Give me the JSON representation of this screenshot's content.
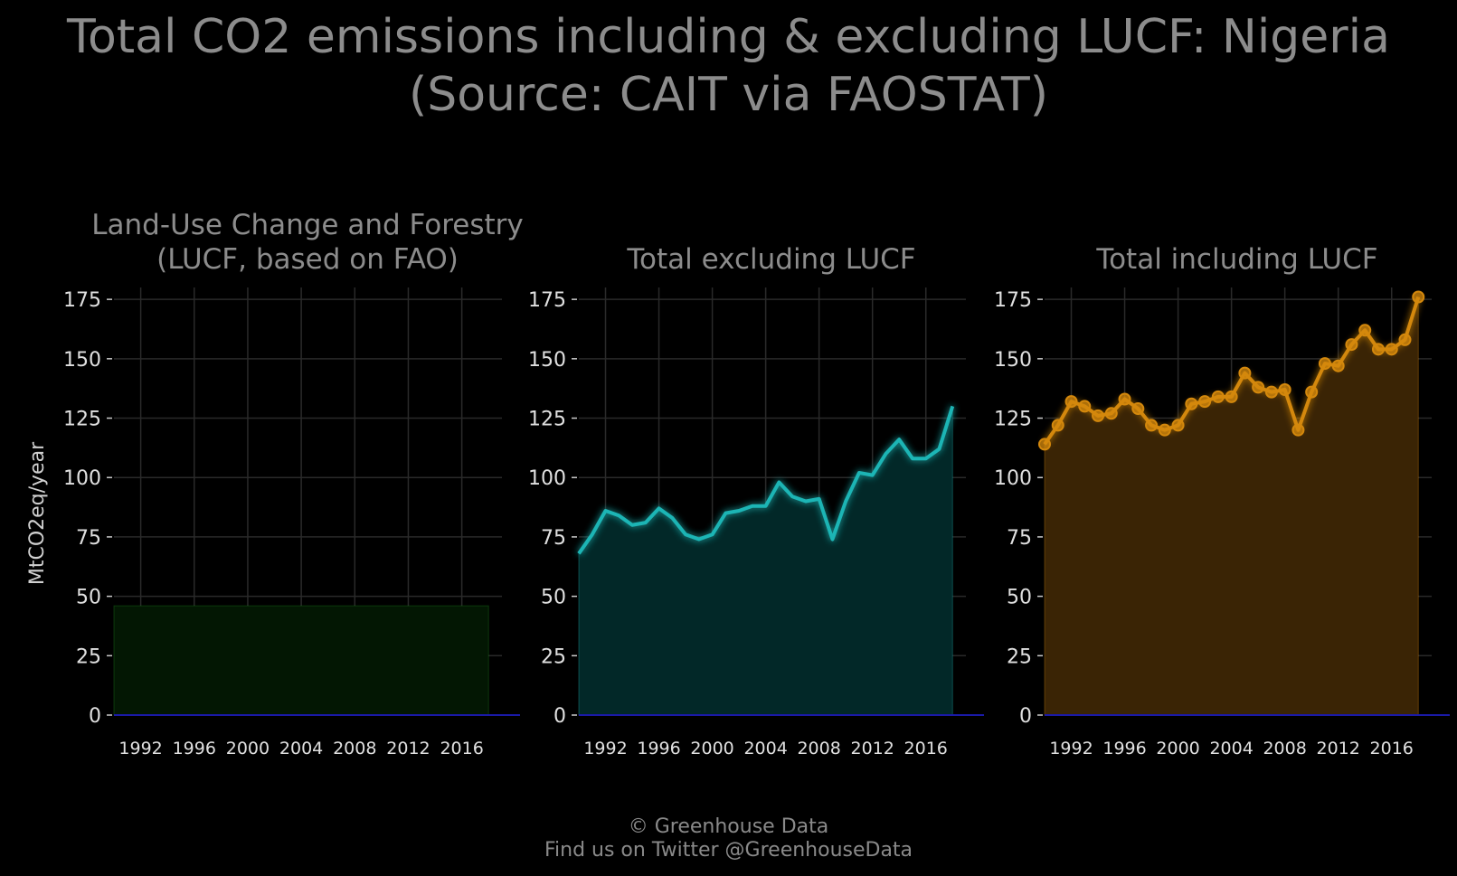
{
  "title_line1": "Total CO2 emissions including & excluding LUCF: Nigeria",
  "title_line2": "(Source: CAIT via FAOSTAT)",
  "ylabel": "MtCO2eq/year",
  "footer_line1": "© Greenhouse Data",
  "footer_line2": "Find us on Twitter @GreenhouseData",
  "colors": {
    "background": "#000000",
    "grid": "#2a2a2a",
    "lucf": "#1f8a1f",
    "lucf_fill": "#031703",
    "excl": "#1fb5b5",
    "excl_fill": "#022828",
    "incl": "#d4880c",
    "incl_fill": "#3a2405",
    "zero_line": "#1a1aa8"
  },
  "chart_data": [
    {
      "type": "area",
      "title_line1": "Land-Use Change and Forestry",
      "title_line2": "(LUCF, based on FAO)",
      "x": [
        1990,
        1991,
        1992,
        1993,
        1994,
        1995,
        1996,
        1997,
        1998,
        1999,
        2000,
        2001,
        2002,
        2003,
        2004,
        2005,
        2006,
        2007,
        2008,
        2009,
        2010,
        2011,
        2012,
        2013,
        2014,
        2015,
        2016,
        2017,
        2018
      ],
      "y": [
        46,
        46,
        46,
        46,
        46,
        46,
        46,
        46,
        46,
        46,
        46,
        46,
        46,
        46,
        46,
        46,
        46,
        46,
        46,
        46,
        46,
        46,
        46,
        46,
        46,
        46,
        46,
        46,
        46
      ],
      "ylim": [
        0,
        180
      ],
      "yticks": [
        0,
        25,
        50,
        75,
        100,
        125,
        150,
        175
      ],
      "xticks": [
        1992,
        1996,
        2000,
        2004,
        2008,
        2012,
        2016
      ],
      "markers": false
    },
    {
      "type": "area",
      "title_line1": "Total excluding LUCF",
      "title_line2": "",
      "x": [
        1990,
        1991,
        1992,
        1993,
        1994,
        1995,
        1996,
        1997,
        1998,
        1999,
        2000,
        2001,
        2002,
        2003,
        2004,
        2005,
        2006,
        2007,
        2008,
        2009,
        2010,
        2011,
        2012,
        2013,
        2014,
        2015,
        2016,
        2017,
        2018
      ],
      "y": [
        68,
        76,
        86,
        84,
        80,
        81,
        87,
        83,
        76,
        74,
        76,
        85,
        86,
        88,
        88,
        98,
        92,
        90,
        91,
        74,
        90,
        102,
        101,
        110,
        116,
        108,
        108,
        112,
        130
      ],
      "ylim": [
        0,
        180
      ],
      "yticks": [
        0,
        25,
        50,
        75,
        100,
        125,
        150,
        175
      ],
      "xticks": [
        1992,
        1996,
        2000,
        2004,
        2008,
        2012,
        2016
      ],
      "markers": false
    },
    {
      "type": "area",
      "title_line1": "Total including LUCF",
      "title_line2": "",
      "x": [
        1990,
        1991,
        1992,
        1993,
        1994,
        1995,
        1996,
        1997,
        1998,
        1999,
        2000,
        2001,
        2002,
        2003,
        2004,
        2005,
        2006,
        2007,
        2008,
        2009,
        2010,
        2011,
        2012,
        2013,
        2014,
        2015,
        2016,
        2017,
        2018
      ],
      "y": [
        114,
        122,
        132,
        130,
        126,
        127,
        133,
        129,
        122,
        120,
        122,
        131,
        132,
        134,
        134,
        144,
        138,
        136,
        137,
        120,
        136,
        148,
        147,
        156,
        162,
        154,
        154,
        158,
        176
      ],
      "ylim": [
        0,
        180
      ],
      "yticks": [
        0,
        25,
        50,
        75,
        100,
        125,
        150,
        175
      ],
      "xticks": [
        1992,
        1996,
        2000,
        2004,
        2008,
        2012,
        2016
      ],
      "markers": true
    }
  ]
}
